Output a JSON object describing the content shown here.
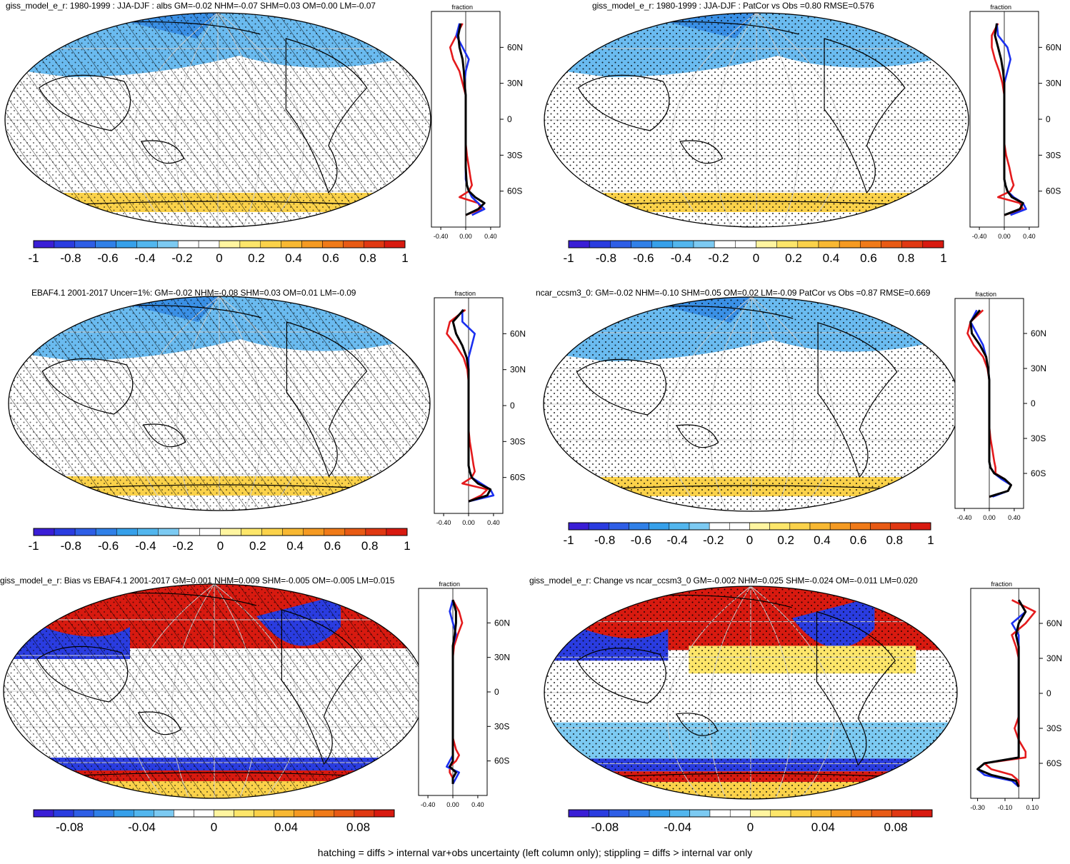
{
  "footer": "hatching = diffs > internal var+obs uncertainty (left column only); stippling = diffs > internal var only",
  "profile_axis_title": "fraction",
  "lat_labels": [
    "60N",
    "30N",
    "0",
    "30S",
    "60S"
  ],
  "colors": {
    "scale": [
      "#3a1ed6",
      "#2a3ce0",
      "#2e5ee6",
      "#3080e8",
      "#36a0ea",
      "#52b6ee",
      "#7ccaf2",
      "#ffffff",
      "#ffffff",
      "#fff5a0",
      "#fde66a",
      "#fbd24a",
      "#f8b832",
      "#f59a22",
      "#f07a18",
      "#e85a14",
      "#e03812",
      "#d81a10"
    ],
    "line_red": "#e41a1c",
    "line_blue": "#1a2ff0",
    "line_black": "#000000"
  },
  "panels": [
    {
      "id": "p1",
      "title": "giss_model_e_r: 1980-1999 : JJA-DJF : albs GM=-0.02 NHM=-0.07 SHM=0.03 OM=0.00 LM=-0.07",
      "pattern": "hatch",
      "colorbar_labels": [
        "-1",
        "-0.8",
        "-0.6",
        "-0.4",
        "-0.2",
        "0",
        "0.2",
        "0.4",
        "0.6",
        "0.8",
        "1"
      ],
      "profile_ticks": [
        "-0.40",
        "0.00",
        "0.40"
      ]
    },
    {
      "id": "p2",
      "title": "giss_model_e_r: 1980-1999 : JJA-DJF : PatCor vs Obs =0.80 RMSE=0.576",
      "pattern": "stipple",
      "colorbar_labels": [
        "-1",
        "-0.8",
        "-0.6",
        "-0.4",
        "-0.2",
        "0",
        "0.2",
        "0.4",
        "0.6",
        "0.8",
        "1"
      ],
      "profile_ticks": [
        "-0.40",
        "0.00",
        "0.40"
      ]
    },
    {
      "id": "p3",
      "title": "EBAF4.1 2001-2017 Uncer=1%: GM=-0.02 NHM=-0.08 SHM=0.03 OM=0.01 LM=-0.09",
      "pattern": "hatch",
      "colorbar_labels": [
        "-1",
        "-0.8",
        "-0.6",
        "-0.4",
        "-0.2",
        "0",
        "0.2",
        "0.4",
        "0.6",
        "0.8",
        "1"
      ],
      "profile_ticks": [
        "-0.40",
        "0.00",
        "0.40"
      ]
    },
    {
      "id": "p4",
      "title": "ncar_ccsm3_0: GM=-0.02 NHM=-0.10 SHM=0.05 OM=0.02 LM=-0.09 PatCor vs Obs =0.87 RMSE=0.669",
      "pattern": "stipple",
      "colorbar_labels": [
        "-1",
        "-0.8",
        "-0.6",
        "-0.4",
        "-0.2",
        "0",
        "0.2",
        "0.4",
        "0.6",
        "0.8",
        "1"
      ],
      "profile_ticks": [
        "-0.40",
        "0.00",
        "0.40"
      ]
    },
    {
      "id": "p5",
      "title": "giss_model_e_r: Bias vs EBAF4.1 2001-2017 GM=0.001 NHM=0.009 SHM=-0.005 OM=-0.005 LM=0.015",
      "pattern": "hatch",
      "colorbar_labels": [
        "-0.08",
        "-0.04",
        "0",
        "0.04",
        "0.08"
      ],
      "profile_ticks": [
        "-0.40",
        "0.00",
        "0.40"
      ]
    },
    {
      "id": "p6",
      "title": "giss_model_e_r: Change vs ncar_ccsm3_0 GM=-0.002 NHM=0.025 SHM=-0.024 OM=-0.011 LM=0.020",
      "pattern": "stipple",
      "colorbar_labels": [
        "-0.08",
        "-0.04",
        "0",
        "0.04",
        "0.08"
      ],
      "profile_ticks": [
        "-0.30",
        "-0.10",
        "0.10"
      ]
    }
  ],
  "chart_data": [
    {
      "type": "heatmap",
      "panel": "p1",
      "title": "giss_model_e_r: 1980-1999 : JJA-DJF : albs GM=-0.02 NHM=-0.07 SHM=0.03 OM=0.00 LM=-0.07",
      "colorbar": {
        "range": [
          -1,
          1
        ],
        "ticks": [
          -1,
          -0.8,
          -0.6,
          -0.4,
          -0.2,
          0,
          0.2,
          0.4,
          0.6,
          0.8,
          1
        ]
      },
      "zonal_profile": {
        "xlim": [
          -0.55,
          0.55
        ],
        "lat": [
          80,
          70,
          60,
          50,
          40,
          30,
          20,
          10,
          0,
          -10,
          -20,
          -30,
          -40,
          -50,
          -55,
          -60,
          -65,
          -70,
          -75,
          -80
        ],
        "series": [
          {
            "color": "red",
            "values": [
              -0.05,
              -0.15,
              -0.25,
              -0.2,
              -0.1,
              -0.05,
              0,
              0,
              0,
              0,
              0,
              0.02,
              0.05,
              0.08,
              0.1,
              0.05,
              -0.1,
              0.2,
              0.25,
              0
            ]
          },
          {
            "color": "blue",
            "values": [
              -0.1,
              -0.15,
              -0.05,
              0.05,
              0,
              -0.02,
              0,
              0,
              0,
              0,
              0,
              0,
              0,
              0,
              0.02,
              0.05,
              0.1,
              0.2,
              0.3,
              0.1
            ]
          },
          {
            "color": "black",
            "values": [
              -0.08,
              -0.12,
              -0.1,
              -0.05,
              -0.03,
              -0.02,
              0,
              0,
              0,
              0,
              0,
              0,
              0,
              0.01,
              0.02,
              0.05,
              0.15,
              0.3,
              0.2,
              0
            ]
          }
        ]
      }
    },
    {
      "type": "heatmap",
      "panel": "p2",
      "title": "giss_model_e_r: 1980-1999 : JJA-DJF : PatCor vs Obs =0.80 RMSE=0.576",
      "colorbar": {
        "range": [
          -1,
          1
        ],
        "ticks": [
          -1,
          -0.8,
          -0.6,
          -0.4,
          -0.2,
          0,
          0.2,
          0.4,
          0.6,
          0.8,
          1
        ]
      },
      "zonal_profile": {
        "xlim": [
          -0.55,
          0.55
        ],
        "lat": [
          80,
          70,
          60,
          50,
          40,
          30,
          20,
          10,
          0,
          -10,
          -20,
          -30,
          -40,
          -50,
          -55,
          -60,
          -65,
          -70,
          -75,
          -80
        ],
        "series": [
          {
            "color": "red",
            "values": [
              -0.1,
              -0.2,
              -0.2,
              -0.15,
              -0.08,
              -0.03,
              0,
              0,
              0,
              0,
              0,
              0.03,
              0.08,
              0.12,
              0.15,
              0.1,
              -0.1,
              0.25,
              0.3,
              0
            ]
          },
          {
            "color": "blue",
            "values": [
              -0.12,
              -0.1,
              0.05,
              0.1,
              0.05,
              0,
              0,
              0,
              0,
              0,
              0,
              0,
              0,
              0,
              0.02,
              0.05,
              0.15,
              0.3,
              0.35,
              0.1
            ]
          },
          {
            "color": "black",
            "values": [
              -0.12,
              -0.15,
              -0.1,
              -0.05,
              -0.02,
              0,
              0,
              0,
              0,
              0,
              0,
              0,
              0,
              0,
              0.02,
              0.05,
              0.12,
              0.3,
              0.25,
              0
            ]
          }
        ]
      }
    },
    {
      "type": "heatmap",
      "panel": "p3",
      "title": "EBAF4.1 2001-2017 Uncer=1%: GM=-0.02 NHM=-0.08 SHM=0.03 OM=0.01 LM=-0.09",
      "colorbar": {
        "range": [
          -1,
          1
        ],
        "ticks": [
          -1,
          -0.8,
          -0.6,
          -0.4,
          -0.2,
          0,
          0.2,
          0.4,
          0.6,
          0.8,
          1
        ]
      },
      "zonal_profile": {
        "xlim": [
          -0.55,
          0.55
        ],
        "lat": [
          80,
          70,
          60,
          50,
          40,
          30,
          20,
          10,
          0,
          -10,
          -20,
          -30,
          -40,
          -50,
          -55,
          -60,
          -65,
          -70,
          -75,
          -80
        ],
        "series": [
          {
            "color": "red",
            "values": [
              -0.05,
              -0.3,
              -0.35,
              -0.2,
              -0.08,
              -0.02,
              0,
              0,
              0,
              0,
              0,
              0.02,
              0.05,
              0.08,
              0.1,
              0.05,
              -0.1,
              0.3,
              0.2,
              0
            ]
          },
          {
            "color": "blue",
            "values": [
              -0.1,
              -0.1,
              0.1,
              0.05,
              0,
              0,
              0,
              0,
              0,
              0,
              0,
              0,
              0,
              0,
              0.02,
              0.05,
              0.2,
              0.35,
              0.4,
              0
            ]
          },
          {
            "color": "black",
            "values": [
              -0.08,
              -0.25,
              -0.2,
              -0.1,
              -0.03,
              0,
              0,
              0,
              0,
              0,
              0,
              0,
              0,
              0,
              0.02,
              0.05,
              0.15,
              0.35,
              0.3,
              0
            ]
          }
        ]
      }
    },
    {
      "type": "heatmap",
      "panel": "p4",
      "title": "ncar_ccsm3_0: GM=-0.02 NHM=-0.10 SHM=0.05 OM=0.02 LM=-0.09 PatCor vs Obs =0.87 RMSE=0.669",
      "colorbar": {
        "range": [
          -1,
          1
        ],
        "ticks": [
          -1,
          -0.8,
          -0.6,
          -0.4,
          -0.2,
          0,
          0.2,
          0.4,
          0.6,
          0.8,
          1
        ]
      },
      "zonal_profile": {
        "xlim": [
          -0.55,
          0.55
        ],
        "lat": [
          80,
          70,
          60,
          50,
          40,
          30,
          20,
          10,
          0,
          -10,
          -20,
          -30,
          -40,
          -50,
          -55,
          -60,
          -65,
          -70,
          -75,
          -80
        ],
        "series": [
          {
            "color": "red",
            "values": [
              -0.1,
              -0.3,
              -0.35,
              -0.25,
              -0.1,
              -0.03,
              0,
              0,
              0,
              0,
              0,
              0.02,
              0.05,
              0.08,
              0.1,
              0.1,
              0.25,
              0.35,
              0.3,
              0
            ]
          },
          {
            "color": "blue",
            "values": [
              -0.2,
              -0.3,
              -0.2,
              -0.1,
              -0.05,
              -0.02,
              0,
              0,
              0,
              0,
              0,
              0,
              0,
              0,
              0.02,
              0.08,
              0.2,
              0.35,
              0.3,
              0.05
            ]
          },
          {
            "color": "black",
            "values": [
              -0.15,
              -0.3,
              -0.28,
              -0.15,
              -0.05,
              -0.02,
              0,
              0,
              0,
              0,
              0,
              0,
              0,
              0,
              0.02,
              0.08,
              0.25,
              0.35,
              0.3,
              0
            ]
          }
        ]
      }
    },
    {
      "type": "heatmap",
      "panel": "p5",
      "title": "giss_model_e_r: Bias vs EBAF4.1 2001-2017 GM=0.001 NHM=0.009 SHM=-0.005 OM=-0.005 LM=0.015",
      "colorbar": {
        "range": [
          -0.1,
          0.1
        ],
        "ticks": [
          -0.08,
          -0.04,
          0,
          0.04,
          0.08
        ]
      },
      "zonal_profile": {
        "xlim": [
          -0.55,
          0.55
        ],
        "lat": [
          80,
          70,
          60,
          50,
          40,
          30,
          20,
          10,
          0,
          -10,
          -20,
          -30,
          -40,
          -50,
          -55,
          -60,
          -65,
          -70,
          -75,
          -80
        ],
        "series": [
          {
            "color": "red",
            "values": [
              0,
              0.1,
              0.15,
              0.08,
              0.02,
              0,
              0,
              0,
              0,
              0,
              0,
              0,
              0,
              0.05,
              0.1,
              0.05,
              -0.05,
              -0.05,
              0,
              0
            ]
          },
          {
            "color": "blue",
            "values": [
              0,
              -0.05,
              0,
              0.05,
              0,
              0,
              0,
              0,
              0,
              0,
              0,
              0,
              0,
              0,
              0,
              -0.05,
              -0.1,
              0.1,
              0.05,
              0
            ]
          },
          {
            "color": "black",
            "values": [
              0,
              0.05,
              0.05,
              0.03,
              0,
              0,
              0,
              0,
              0,
              0,
              0,
              0,
              0,
              0,
              0,
              0,
              -0.05,
              0.05,
              0,
              0
            ]
          }
        ]
      }
    },
    {
      "type": "heatmap",
      "panel": "p6",
      "title": "giss_model_e_r: Change vs ncar_ccsm3_0 GM=-0.002 NHM=0.025 SHM=-0.024 OM=-0.011 LM=0.020",
      "colorbar": {
        "range": [
          -0.1,
          0.1
        ],
        "ticks": [
          -0.08,
          -0.04,
          0,
          0.04,
          0.08
        ]
      },
      "zonal_profile": {
        "xlim": [
          -0.35,
          0.15
        ],
        "lat": [
          80,
          70,
          60,
          50,
          40,
          30,
          20,
          10,
          0,
          -10,
          -20,
          -30,
          -40,
          -50,
          -55,
          -60,
          -65,
          -70,
          -75,
          -80
        ],
        "series": [
          {
            "color": "red",
            "values": [
              -0.05,
              0.12,
              0.05,
              -0.05,
              -0.02,
              0,
              0,
              0,
              0,
              0,
              0,
              -0.03,
              0,
              0.05,
              0.05,
              -0.25,
              -0.2,
              -0.05,
              0,
              0
            ]
          },
          {
            "color": "blue",
            "values": [
              0,
              0.05,
              -0.05,
              0,
              0,
              0,
              0,
              0,
              0,
              0,
              0,
              0,
              0,
              0,
              0,
              -0.25,
              -0.3,
              -0.25,
              -0.05,
              0
            ]
          },
          {
            "color": "black",
            "values": [
              0,
              0.05,
              0,
              -0.02,
              0,
              0,
              0,
              0,
              0,
              0,
              0,
              0,
              0,
              0,
              0,
              -0.25,
              -0.3,
              -0.2,
              -0.02,
              0
            ]
          }
        ]
      }
    }
  ]
}
